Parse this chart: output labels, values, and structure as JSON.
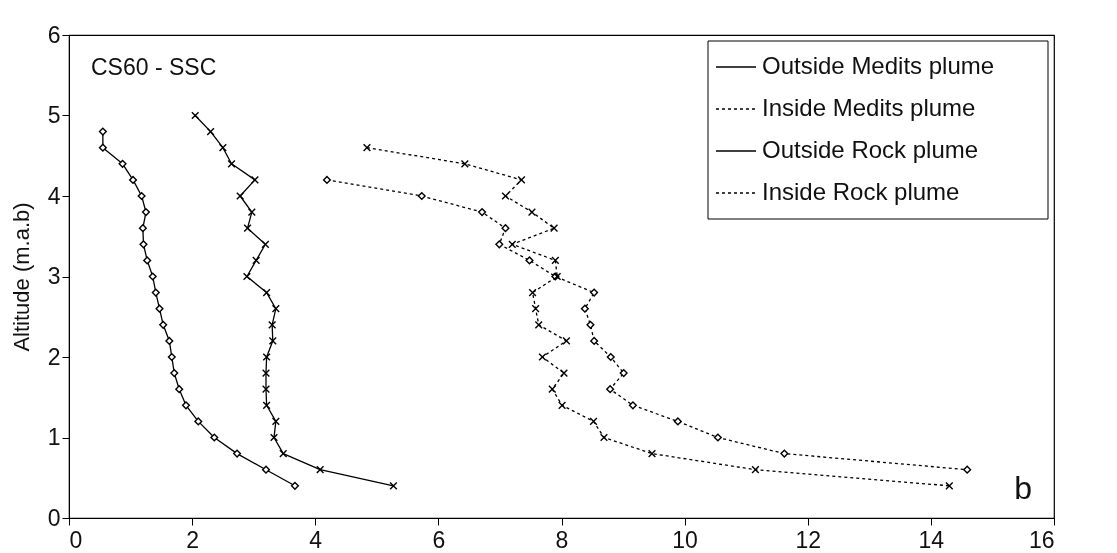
{
  "chart_data": {
    "type": "line",
    "ylabel": "Altitude (m.a.b)",
    "xlim": [
      0,
      16
    ],
    "xticks": [
      0,
      2,
      4,
      6,
      8,
      10,
      12,
      14,
      16
    ],
    "ylim": [
      0,
      6
    ],
    "yticks": [
      0,
      1,
      2,
      3,
      4,
      5,
      6
    ],
    "grid": false,
    "legend": "top right",
    "annotations": [
      "CS60 - SSC",
      "b"
    ],
    "series": [
      {
        "name": "Outside Medits plume",
        "color": "#000000",
        "marker": "diamond",
        "line_style": "solid",
        "x": [
          0.55,
          0.55,
          0.87,
          1.04,
          1.18,
          1.25,
          1.2,
          1.21,
          1.27,
          1.36,
          1.41,
          1.47,
          1.53,
          1.63,
          1.67,
          1.71,
          1.79,
          1.9,
          2.1,
          2.36,
          2.73,
          3.2,
          3.67
        ],
        "values": [
          4.8,
          4.6,
          4.4,
          4.2,
          4.0,
          3.8,
          3.6,
          3.4,
          3.2,
          3.0,
          2.8,
          2.6,
          2.4,
          2.2,
          2.0,
          1.8,
          1.6,
          1.4,
          1.2,
          1.0,
          0.8,
          0.6,
          0.4
        ]
      },
      {
        "name": "Inside Medits plume",
        "color": "#000000",
        "marker": "diamond",
        "line_style": "dotted",
        "x": [
          4.19,
          5.73,
          6.71,
          7.09,
          6.99,
          7.48,
          7.9,
          8.53,
          8.38,
          8.47,
          8.53,
          8.8,
          9.01,
          8.79,
          9.16,
          9.89,
          10.54,
          11.62,
          14.59
        ],
        "values": [
          4.2,
          4.0,
          3.8,
          3.6,
          3.4,
          3.2,
          3.0,
          2.8,
          2.6,
          2.4,
          2.2,
          2.0,
          1.8,
          1.6,
          1.4,
          1.2,
          1.0,
          0.8,
          0.6
        ]
      },
      {
        "name": "Outside Rock plume",
        "color": "#000000",
        "marker": "cross",
        "line_style": "solid",
        "x": [
          2.05,
          2.3,
          2.5,
          2.64,
          3.02,
          2.78,
          2.97,
          2.9,
          3.19,
          3.04,
          2.89,
          3.21,
          3.36,
          3.3,
          3.31,
          3.21,
          3.2,
          3.2,
          3.21,
          3.36,
          3.33,
          3.48,
          4.08,
          5.27
        ],
        "values": [
          5.0,
          4.8,
          4.6,
          4.4,
          4.2,
          4.0,
          3.8,
          3.6,
          3.4,
          3.2,
          3.0,
          2.8,
          2.6,
          2.4,
          2.2,
          2.0,
          1.8,
          1.6,
          1.4,
          1.2,
          1.0,
          0.8,
          0.6,
          0.4
        ]
      },
      {
        "name": "Inside Rock plume",
        "color": "#000000",
        "marker": "cross",
        "line_style": "dotted",
        "x": [
          4.84,
          6.43,
          7.35,
          7.09,
          7.52,
          7.88,
          7.2,
          7.9,
          7.93,
          7.53,
          7.58,
          7.63,
          8.08,
          7.69,
          8.04,
          7.85,
          8.01,
          8.52,
          8.69,
          9.47,
          11.15,
          14.3
        ],
        "values": [
          4.6,
          4.4,
          4.2,
          4.0,
          3.8,
          3.6,
          3.4,
          3.2,
          3.0,
          2.8,
          2.6,
          2.4,
          2.2,
          2.0,
          1.8,
          1.6,
          1.4,
          1.2,
          1.0,
          0.8,
          0.6,
          0.4
        ]
      }
    ]
  }
}
